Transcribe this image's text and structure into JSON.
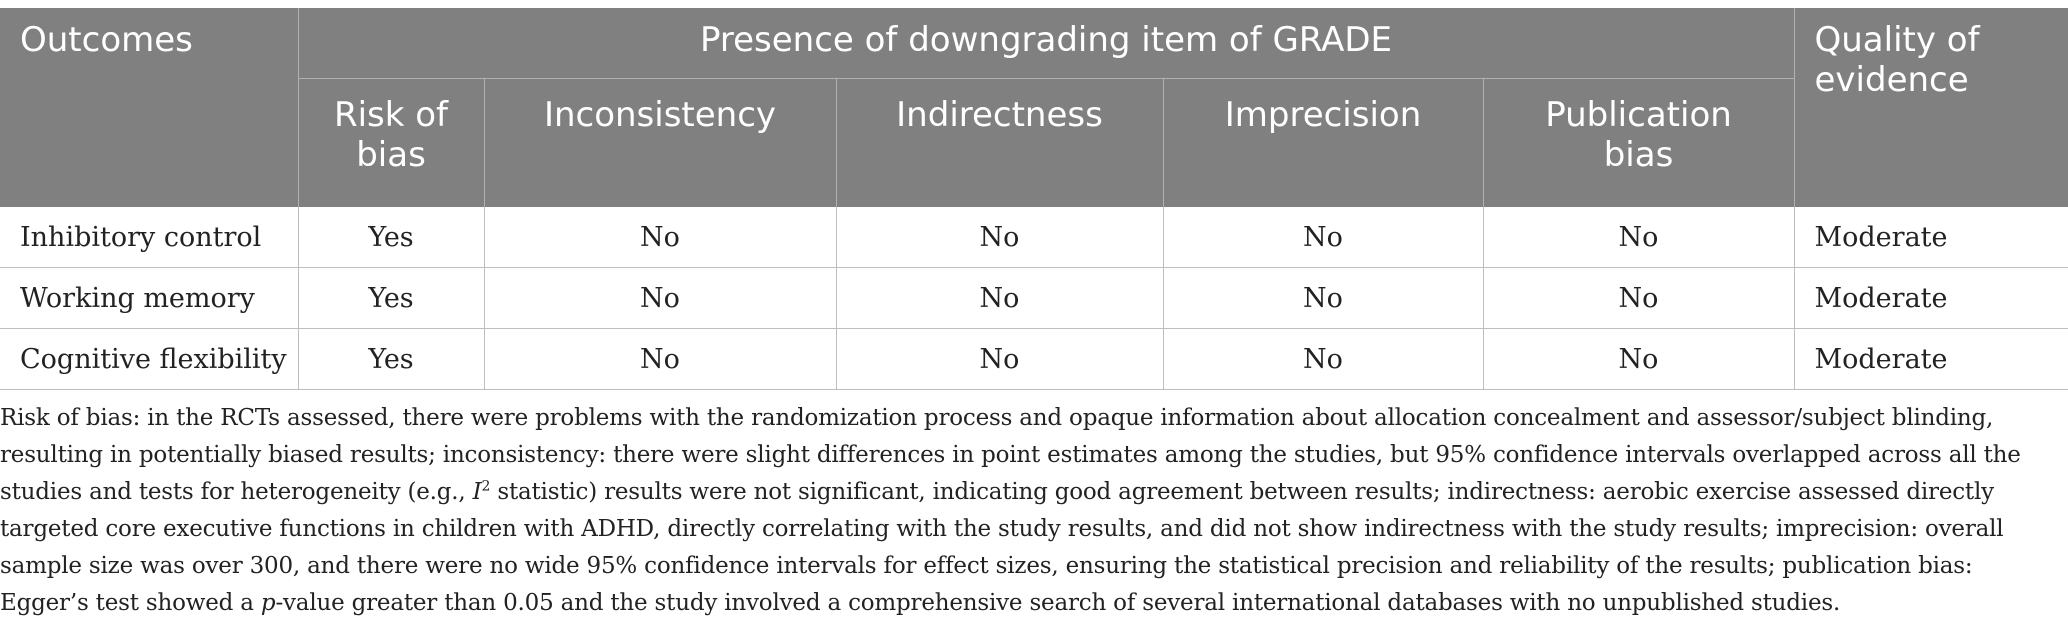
{
  "table": {
    "headers": {
      "outcomes": "Outcomes",
      "group": "Presence of downgrading item of GRADE",
      "quality_line1": "Quality of",
      "quality_line2": "evidence",
      "sub": [
        {
          "line1": "Risk of",
          "line2": "bias"
        },
        {
          "line1": "Inconsistency",
          "line2": ""
        },
        {
          "line1": "Indirectness",
          "line2": ""
        },
        {
          "line1": "Imprecision",
          "line2": ""
        },
        {
          "line1": "Publication",
          "line2": "bias"
        }
      ]
    },
    "rows": [
      {
        "outcome": "Inhibitory control",
        "cells": [
          "Yes",
          "No",
          "No",
          "No",
          "No"
        ],
        "quality": "Moderate"
      },
      {
        "outcome": "Working memory",
        "cells": [
          "Yes",
          "No",
          "No",
          "No",
          "No"
        ],
        "quality": "Moderate"
      },
      {
        "outcome": "Cognitive flexibility",
        "cells": [
          "Yes",
          "No",
          "No",
          "No",
          "No"
        ],
        "quality": "Moderate"
      }
    ]
  },
  "footnote": {
    "part1": "Risk of bias: in the RCTs assessed, there were problems with the randomization process and opaque information about allocation concealment and assessor/subject blinding, resulting in potentially biased results; inconsistency: there were slight differences in point estimates among the studies, but 95% confidence intervals overlapped across all the studies and tests for heterogeneity (e.g., ",
    "i_symbol": "I",
    "sup": "2",
    "part2": " statistic) results were not significant, indicating good agreement between results; indirectness: aerobic exercise assessed directly targeted core executive functions in children with ADHD, directly correlating with the study results, and did not show indirectness with the study results; imprecision: overall sample size was over 300, and there were no wide 95% confidence intervals for effect sizes, ensuring the statistical precision and reliability of the results; publication bias: Egger’s test showed a ",
    "p_symbol": "p",
    "part3": "-value greater than 0.05 and the study involved a comprehensive search of several international databases with no unpublished studies."
  }
}
